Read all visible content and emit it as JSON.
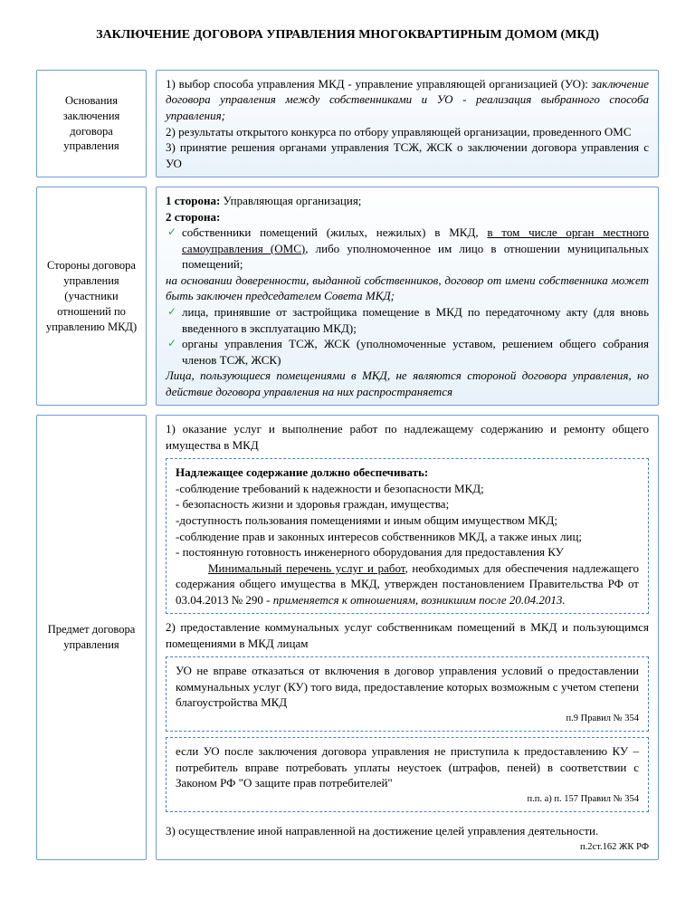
{
  "title": "ЗАКЛЮЧЕНИЕ ДОГОВОРА УПРАВЛЕНИЯ МНОГОКВАРТИРНЫМ ДОМОМ (МКД)",
  "colors": {
    "border": "#6d9dd1",
    "dashed_border": "#4a7fbf",
    "gradient_top": "#ffffff",
    "gradient_bottom": "#e8f1fa",
    "check": "#2a5"
  },
  "rows": [
    {
      "label": "Основания заключения договора управления",
      "content": {
        "p1a": "1) выбор способа управления МКД  - управление управляющей организацией (УО): ",
        "p1b": "заключение договора управления между собственниками и УО - реализация выбранного способа управления;",
        "p2": "2) результаты открытого конкурса по отбору управляющей организации, проведенного ОМС",
        "p3": "3) принятие решения органами управления ТСЖ, ЖСК о заключении договора управления с УО"
      }
    },
    {
      "label": "Стороны договора управления (участники отношений по управлению МКД)",
      "content": {
        "s1a": "1 сторона:",
        "s1b": " Управляющая организация;",
        "s2": "2 сторона:",
        "li1a": "собственники помещений (жилых, нежилых) в МКД, ",
        "li1b": "в том числе орган местного самоуправления (ОМС)",
        "li1c": ", либо уполномоченное им лицо в отношении муниципальных помещений;",
        "note1": "на основании доверенности, выданной собственников, договор от имени собственника может быть заключен председателем Совета МКД;",
        "li2": "лица, принявшие от застройщика помещение в МКД по передаточному акту (для вновь введенного в эксплуатацию МКД);",
        "li3": "органы управления ТСЖ, ЖСК (уполномоченные уставом, решением общего собрания членов ТСЖ, ЖСК)",
        "note2": "Лица, пользующиеся помещениями в МКД, не являются стороной договора управления, но действие договора управления на них распространяется"
      }
    },
    {
      "label": "Предмет договора управления",
      "content": {
        "p1": "1) оказание услуг и выполнение работ по надлежащему содержанию и ремонту общего имущества в МКД",
        "box1": {
          "h": "Надлежащее содержание должно обеспечивать:",
          "l1": "-соблюдение требований к надежности и безопасности МКД;",
          "l2": "- безопасность жизни и здоровья граждан, имущества;",
          "l3": "-доступность пользования помещениями и иным общим имуществом МКД;",
          "l4": "-соблюдение прав и законных интересов собственников МКД, а также иных лиц;",
          "l5": "- постоянную готовность инженерного оборудования для предоставления КУ",
          "m1a": "Минимальный перечень услуг и работ",
          "m1b": ", необходимых для обеспечения надлежащего содержания общего имущества в МКД, утвержден постановлением Правительства РФ от 03.04.2013 № 290 - ",
          "m1c": "применяется к отношениям, возникшим после 20.04.2013."
        },
        "p2": "2) предоставление коммунальных услуг собственникам помещений в МКД и пользующимся помещениями в МКД лицам",
        "box2a": {
          "t": "УО не вправе отказаться от включения в договор управления условий о предоставлении коммунальных услуг (КУ) того вида, предоставление которых возможным с учетом степени благоустройства МКД",
          "c": "п.9 Правил № 354"
        },
        "box2b": {
          "t": "если УО после заключения договора управления не приступила к предоставлению КУ – потребитель вправе потребовать уплаты неустоек (штрафов, пеней) в соответствии с Законом РФ \"О защите прав потребителей\"",
          "c": "п.п. а) п. 157 Правил № 354"
        },
        "p3": "3) осуществление иной направленной на достижение целей управления деятельности.",
        "cite3": "п.2ст.162 ЖК РФ"
      }
    }
  ]
}
